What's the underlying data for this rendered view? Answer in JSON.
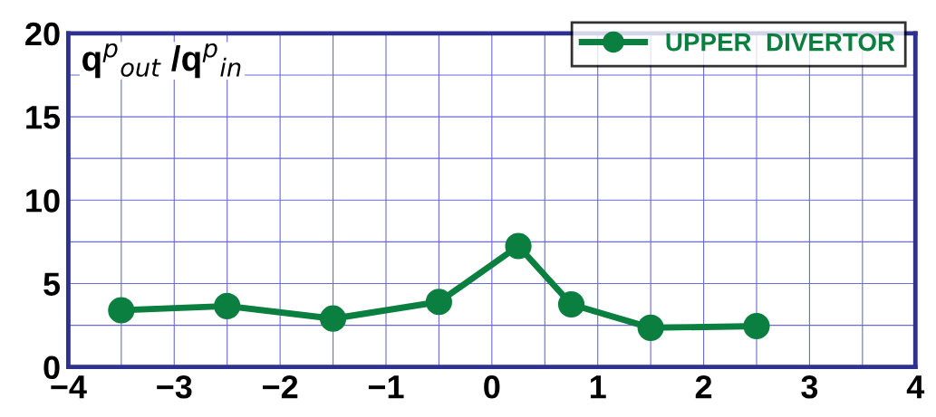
{
  "chart_data": {
    "type": "line",
    "ylabel": "q$^{p}$$_{out}$ /q$^{p}$$_{in}$",
    "x": [
      -3.5,
      -2.5,
      -1.5,
      -0.5,
      0.25,
      0.75,
      1.5,
      2.5
    ],
    "series": [
      {
        "name": "UPPER  DIVERTOR",
        "color": "#0b7f40",
        "values": [
          3.4,
          3.65,
          2.9,
          3.9,
          7.25,
          3.75,
          2.35,
          2.45
        ]
      }
    ],
    "xlim": [
      -4,
      4
    ],
    "ylim": [
      0,
      20
    ],
    "xticks": [
      -4,
      {
        "value": -3.5,
        "label": null
      },
      -3,
      {
        "value": -2.5,
        "label": null
      },
      -2,
      {
        "value": -1.5,
        "label": null
      },
      -1,
      {
        "value": -0.5,
        "label": null
      },
      0,
      {
        "value": 0.5,
        "label": null
      },
      1,
      {
        "value": 1.5,
        "label": null
      },
      2,
      {
        "value": 2.5,
        "label": null
      },
      3,
      {
        "value": 3.5,
        "label": null
      },
      4
    ],
    "yticks": [
      0,
      {
        "value": 2.5,
        "label": null
      },
      5,
      {
        "value": 7.5,
        "label": null
      },
      10,
      {
        "value": 12.5,
        "label": null
      },
      15,
      {
        "value": 17.5,
        "label": null
      },
      20
    ],
    "grid": true,
    "legend": "top right",
    "marker": "circle",
    "line_style": "solid"
  }
}
